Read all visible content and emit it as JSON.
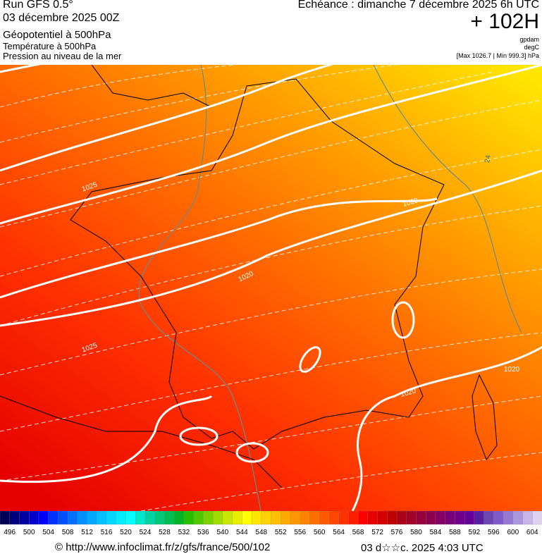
{
  "header": {
    "run": "Run GFS 0.5°",
    "run_date": "03 décembre 2025 00Z",
    "line1": "Géopotentiel à 500hPa",
    "line2": "Température à 500hPa",
    "line3": "Pression au niveau de la mer",
    "echeance": "Echéance : dimanche 7 décembre 2025 6h UTC",
    "lead": "+ 102H",
    "unit1": "gpdam",
    "unit2": "degC",
    "range": "[Max 1026.7 | Min 999.3] hPa"
  },
  "map": {
    "isobar_labels": [
      "1025",
      "1020",
      "1020",
      "1020",
      "1020",
      "1025"
    ],
    "temperature_label": "24"
  },
  "colorbar": {
    "ticks": [
      496,
      500,
      504,
      508,
      512,
      516,
      520,
      524,
      528,
      532,
      536,
      540,
      544,
      548,
      552,
      556,
      560,
      564,
      568,
      572,
      576,
      580,
      584,
      588,
      592,
      596,
      600,
      604
    ],
    "colors": [
      "#00005a",
      "#00007d",
      "#0000a0",
      "#0000c8",
      "#0000ff",
      "#0032ff",
      "#0050ff",
      "#0070ff",
      "#0090ff",
      "#00a8ff",
      "#00c0ff",
      "#00d8ff",
      "#00ecff",
      "#00ffff",
      "#00e6c8",
      "#00d2a0",
      "#00c878",
      "#00be50",
      "#00b428",
      "#28be00",
      "#50c800",
      "#78d200",
      "#a0dc00",
      "#c8e600",
      "#e6f000",
      "#ffff00",
      "#ffe600",
      "#ffd200",
      "#ffbe00",
      "#ffaa00",
      "#ff9600",
      "#ff8200",
      "#ff6e00",
      "#ff5a00",
      "#ff4600",
      "#ff3200",
      "#ff1e00",
      "#ff0000",
      "#e60000",
      "#d20000",
      "#be0000",
      "#aa0014",
      "#a00028",
      "#96003c",
      "#8c0050",
      "#820064",
      "#780078",
      "#6e008c",
      "#640096",
      "#5a1ea0",
      "#6e46b4",
      "#825ac8",
      "#9678d2",
      "#aa96dc",
      "#c8b4e6",
      "#dcd2f0"
    ]
  },
  "footer": {
    "url": "© http://www.infoclimat.fr/z/gfs/france/500/102",
    "generated": "03 d☆☆c. 2025  4:03 UTC"
  }
}
